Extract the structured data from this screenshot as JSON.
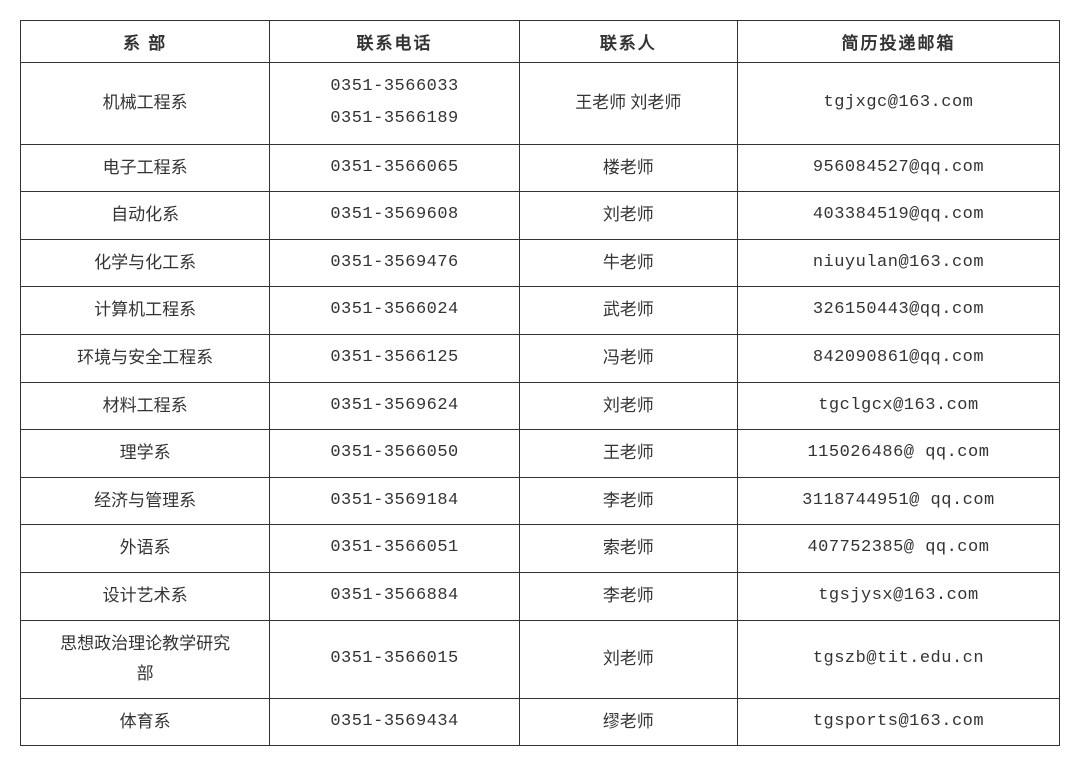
{
  "table": {
    "headers": {
      "department": "系 部",
      "phone": "联系电话",
      "contact": "联系人",
      "email": "简历投递邮箱"
    },
    "rows": [
      {
        "department": "机械工程系",
        "phone_line1": "0351-3566033",
        "phone_line2": "0351-3566189",
        "contact": "王老师 刘老师",
        "email": "tgjxgc@163.com",
        "double_phone": true
      },
      {
        "department": "电子工程系",
        "phone": "0351-3566065",
        "contact": "楼老师",
        "email": "956084527@qq.com"
      },
      {
        "department": "自动化系",
        "phone": "0351-3569608",
        "contact": "刘老师",
        "email": "403384519@qq.com"
      },
      {
        "department": "化学与化工系",
        "phone": "0351-3569476",
        "contact": "牛老师",
        "email": "niuyulan@163.com"
      },
      {
        "department": "计算机工程系",
        "phone": "0351-3566024",
        "contact": "武老师",
        "email": "326150443@qq.com"
      },
      {
        "department": "环境与安全工程系",
        "phone": "0351-3566125",
        "contact": "冯老师",
        "email": "842090861@qq.com"
      },
      {
        "department": "材料工程系",
        "phone": "0351-3569624",
        "contact": "刘老师",
        "email": "tgclgcx@163.com"
      },
      {
        "department": "理学系",
        "phone": "0351-3566050",
        "contact": "王老师",
        "email": "115026486@ qq.com"
      },
      {
        "department": "经济与管理系",
        "phone": "0351-3569184",
        "contact": "李老师",
        "email": "3118744951@ qq.com"
      },
      {
        "department": "外语系",
        "phone": "0351-3566051",
        "contact": "索老师",
        "email": "407752385@ qq.com"
      },
      {
        "department": "设计艺术系",
        "phone": "0351-3566884",
        "contact": "李老师",
        "email": "tgsjysx@163.com"
      },
      {
        "department_line1": "思想政治理论教学研究",
        "department_line2": "部",
        "phone": "0351-3566015",
        "contact": "刘老师",
        "email": "tgszb@tit.edu.cn",
        "double_dept": true
      },
      {
        "department": "体育系",
        "phone": "0351-3569434",
        "contact": "缪老师",
        "email": "tgsports@163.com"
      }
    ]
  },
  "colors": {
    "border": "#333333",
    "text": "#333333",
    "background": "#ffffff"
  }
}
